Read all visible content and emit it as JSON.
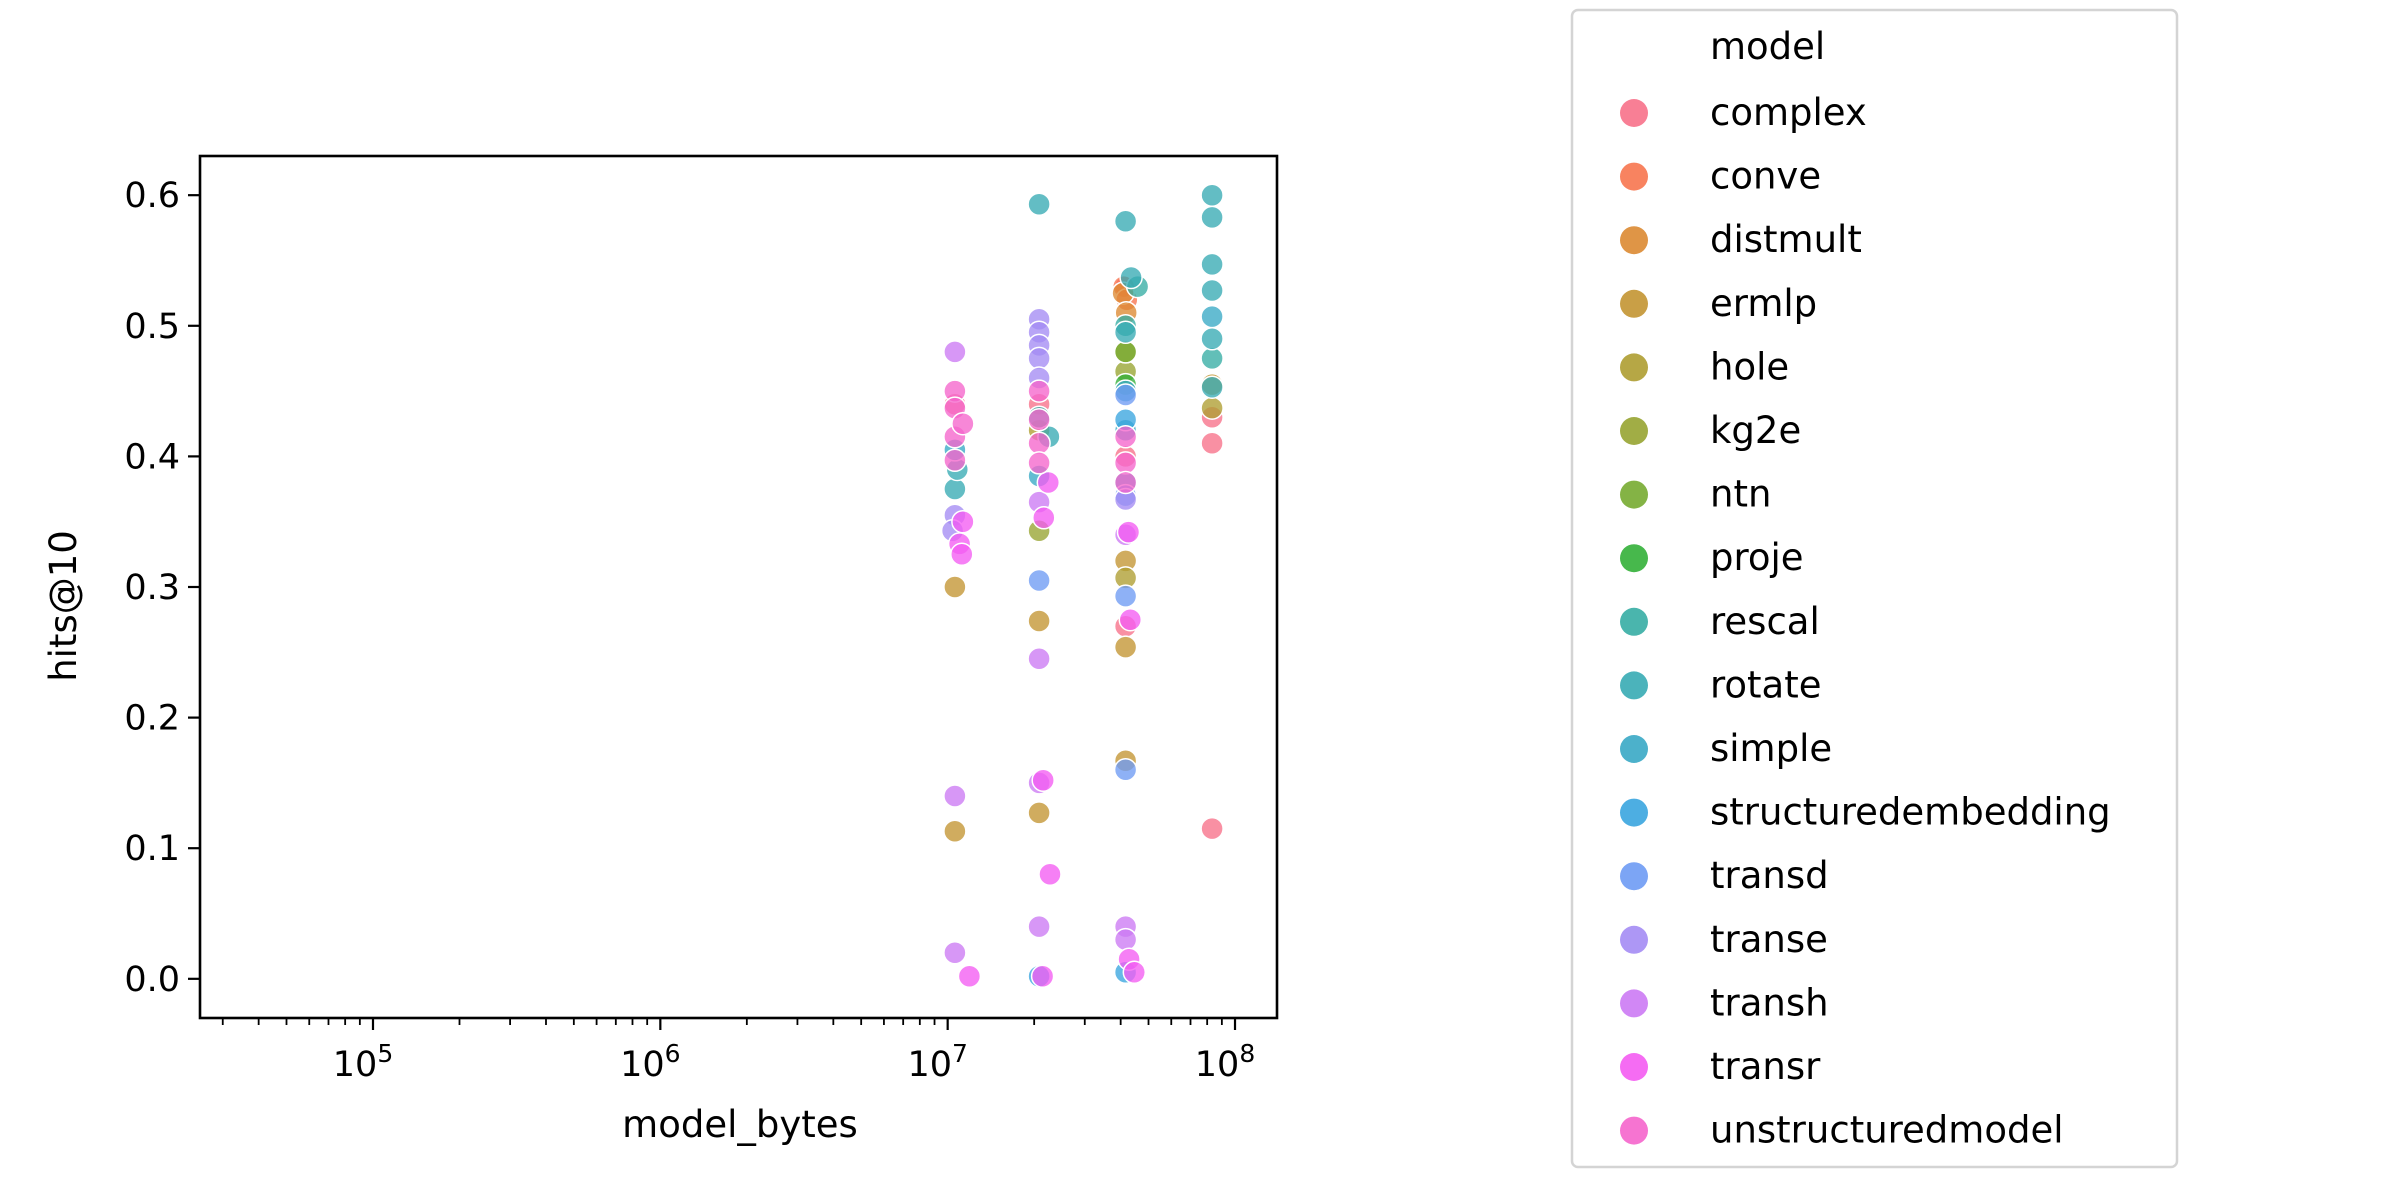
{
  "chart_data": {
    "type": "scatter",
    "xlabel": "model_bytes",
    "ylabel": "hits@10",
    "x_scale": "log",
    "xlim": [
      25000,
      140000000
    ],
    "ylim": [
      -0.03,
      0.63
    ],
    "x_ticks": [
      {
        "value": 100000,
        "base": "10",
        "exp": "5"
      },
      {
        "value": 1000000,
        "base": "10",
        "exp": "6"
      },
      {
        "value": 10000000,
        "base": "10",
        "exp": "7"
      },
      {
        "value": 100000000,
        "base": "10",
        "exp": "8"
      }
    ],
    "y_ticks": [
      {
        "value": 0.0,
        "label": "0.0"
      },
      {
        "value": 0.1,
        "label": "0.1"
      },
      {
        "value": 0.2,
        "label": "0.2"
      },
      {
        "value": 0.3,
        "label": "0.3"
      },
      {
        "value": 0.4,
        "label": "0.4"
      },
      {
        "value": 0.5,
        "label": "0.5"
      },
      {
        "value": 0.6,
        "label": "0.6"
      }
    ],
    "grid": false,
    "legend": {
      "title": "model",
      "placement": "outside-right"
    },
    "series": [
      {
        "name": "complex",
        "color": "#f77189",
        "points": [
          [
            10600000,
            0.44
          ],
          [
            20800000,
            0.44
          ],
          [
            41600000,
            0.53
          ],
          [
            41600000,
            0.4
          ],
          [
            41600000,
            0.27
          ],
          [
            83200000,
            0.43
          ],
          [
            83200000,
            0.41
          ],
          [
            83200000,
            0.115
          ]
        ]
      },
      {
        "name": "conve",
        "color": "#f7754f",
        "points": [
          [
            41000000,
            0.53
          ],
          [
            42000000,
            0.52
          ]
        ]
      },
      {
        "name": "distmult",
        "color": "#dc8932",
        "points": [
          [
            40800000,
            0.525
          ],
          [
            41800000,
            0.51
          ]
        ]
      },
      {
        "name": "ermlp",
        "color": "#c39532",
        "points": [
          [
            10600000,
            0.3
          ],
          [
            10600000,
            0.113
          ],
          [
            20800000,
            0.274
          ],
          [
            20800000,
            0.127
          ],
          [
            41600000,
            0.32
          ],
          [
            41600000,
            0.254
          ],
          [
            41600000,
            0.167
          ],
          [
            83200000,
            0.455
          ]
        ]
      },
      {
        "name": "hole",
        "color": "#ae9d31",
        "points": [
          [
            20800000,
            0.42
          ],
          [
            41600000,
            0.307
          ],
          [
            83200000,
            0.437
          ]
        ]
      },
      {
        "name": "kg2e",
        "color": "#97a431",
        "points": [
          [
            20800000,
            0.343
          ],
          [
            41600000,
            0.465
          ],
          [
            41600000,
            0.48
          ]
        ]
      },
      {
        "name": "ntn",
        "color": "#77ab31",
        "points": [
          [
            41600000,
            0.48
          ]
        ]
      },
      {
        "name": "proje",
        "color": "#33b039",
        "points": [
          [
            41600000,
            0.455
          ]
        ]
      },
      {
        "name": "rescal",
        "color": "#36ada4",
        "points": [
          [
            41600000,
            0.5
          ],
          [
            83200000,
            0.475
          ],
          [
            45800000,
            0.53
          ],
          [
            20800000,
            0.43
          ]
        ]
      },
      {
        "name": "rotate",
        "color": "#37abb4",
        "points": [
          [
            20800000,
            0.593
          ],
          [
            41600000,
            0.58
          ],
          [
            43500000,
            0.537
          ],
          [
            83200000,
            0.6
          ],
          [
            83200000,
            0.583
          ],
          [
            83200000,
            0.547
          ],
          [
            83200000,
            0.527
          ],
          [
            83200000,
            0.49
          ],
          [
            83200000,
            0.453
          ],
          [
            41600000,
            0.495
          ],
          [
            10600000,
            0.375
          ],
          [
            10800000,
            0.39
          ],
          [
            22500000,
            0.415
          ]
        ]
      },
      {
        "name": "simple",
        "color": "#38a9c5",
        "points": [
          [
            83200000,
            0.507
          ],
          [
            41600000,
            0.45
          ],
          [
            41600000,
            0.42
          ],
          [
            41600000,
            0.38
          ],
          [
            20800000,
            0.385
          ],
          [
            10600000,
            0.405
          ]
        ]
      },
      {
        "name": "structuredembedding",
        "color": "#3aa5df",
        "points": [
          [
            41600000,
            0.428
          ],
          [
            41600000,
            0.005
          ],
          [
            20800000,
            0.002
          ]
        ]
      },
      {
        "name": "transd",
        "color": "#6e9bf4",
        "points": [
          [
            20800000,
            0.305
          ],
          [
            41600000,
            0.447
          ],
          [
            41600000,
            0.293
          ],
          [
            41600000,
            0.16
          ],
          [
            41600000,
            0.37
          ]
        ]
      },
      {
        "name": "transe",
        "color": "#a48cf4",
        "points": [
          [
            20800000,
            0.505
          ],
          [
            20800000,
            0.495
          ],
          [
            20800000,
            0.485
          ],
          [
            20800000,
            0.475
          ],
          [
            20800000,
            0.46
          ],
          [
            10600000,
            0.355
          ],
          [
            10400000,
            0.343
          ],
          [
            41600000,
            0.367
          ]
        ]
      },
      {
        "name": "transh",
        "color": "#cc7af4",
        "points": [
          [
            10600000,
            0.48
          ],
          [
            10600000,
            0.14
          ],
          [
            10600000,
            0.02
          ],
          [
            20800000,
            0.365
          ],
          [
            20800000,
            0.245
          ],
          [
            20800000,
            0.15
          ],
          [
            20800000,
            0.04
          ],
          [
            41600000,
            0.34
          ],
          [
            41600000,
            0.04
          ],
          [
            41600000,
            0.03
          ]
        ]
      },
      {
        "name": "transr",
        "color": "#f45cf2",
        "points": [
          [
            11900000,
            0.002
          ],
          [
            11000000,
            0.333
          ],
          [
            11200000,
            0.325
          ],
          [
            11300000,
            0.35
          ],
          [
            21500000,
            0.152
          ],
          [
            21600000,
            0.353
          ],
          [
            22400000,
            0.38
          ],
          [
            22700000,
            0.08
          ],
          [
            21400000,
            0.002
          ],
          [
            42600000,
            0.342
          ],
          [
            43200000,
            0.275
          ],
          [
            42800000,
            0.015
          ],
          [
            44600000,
            0.005
          ]
        ]
      },
      {
        "name": "unstructuredmodel",
        "color": "#f565cc",
        "points": [
          [
            10600000,
            0.45
          ],
          [
            10600000,
            0.437
          ],
          [
            10600000,
            0.415
          ],
          [
            10600000,
            0.397
          ],
          [
            11300000,
            0.425
          ],
          [
            20800000,
            0.45
          ],
          [
            20800000,
            0.428
          ],
          [
            20800000,
            0.41
          ],
          [
            20800000,
            0.395
          ],
          [
            41600000,
            0.415
          ],
          [
            41600000,
            0.395
          ],
          [
            41600000,
            0.38
          ]
        ]
      }
    ]
  }
}
